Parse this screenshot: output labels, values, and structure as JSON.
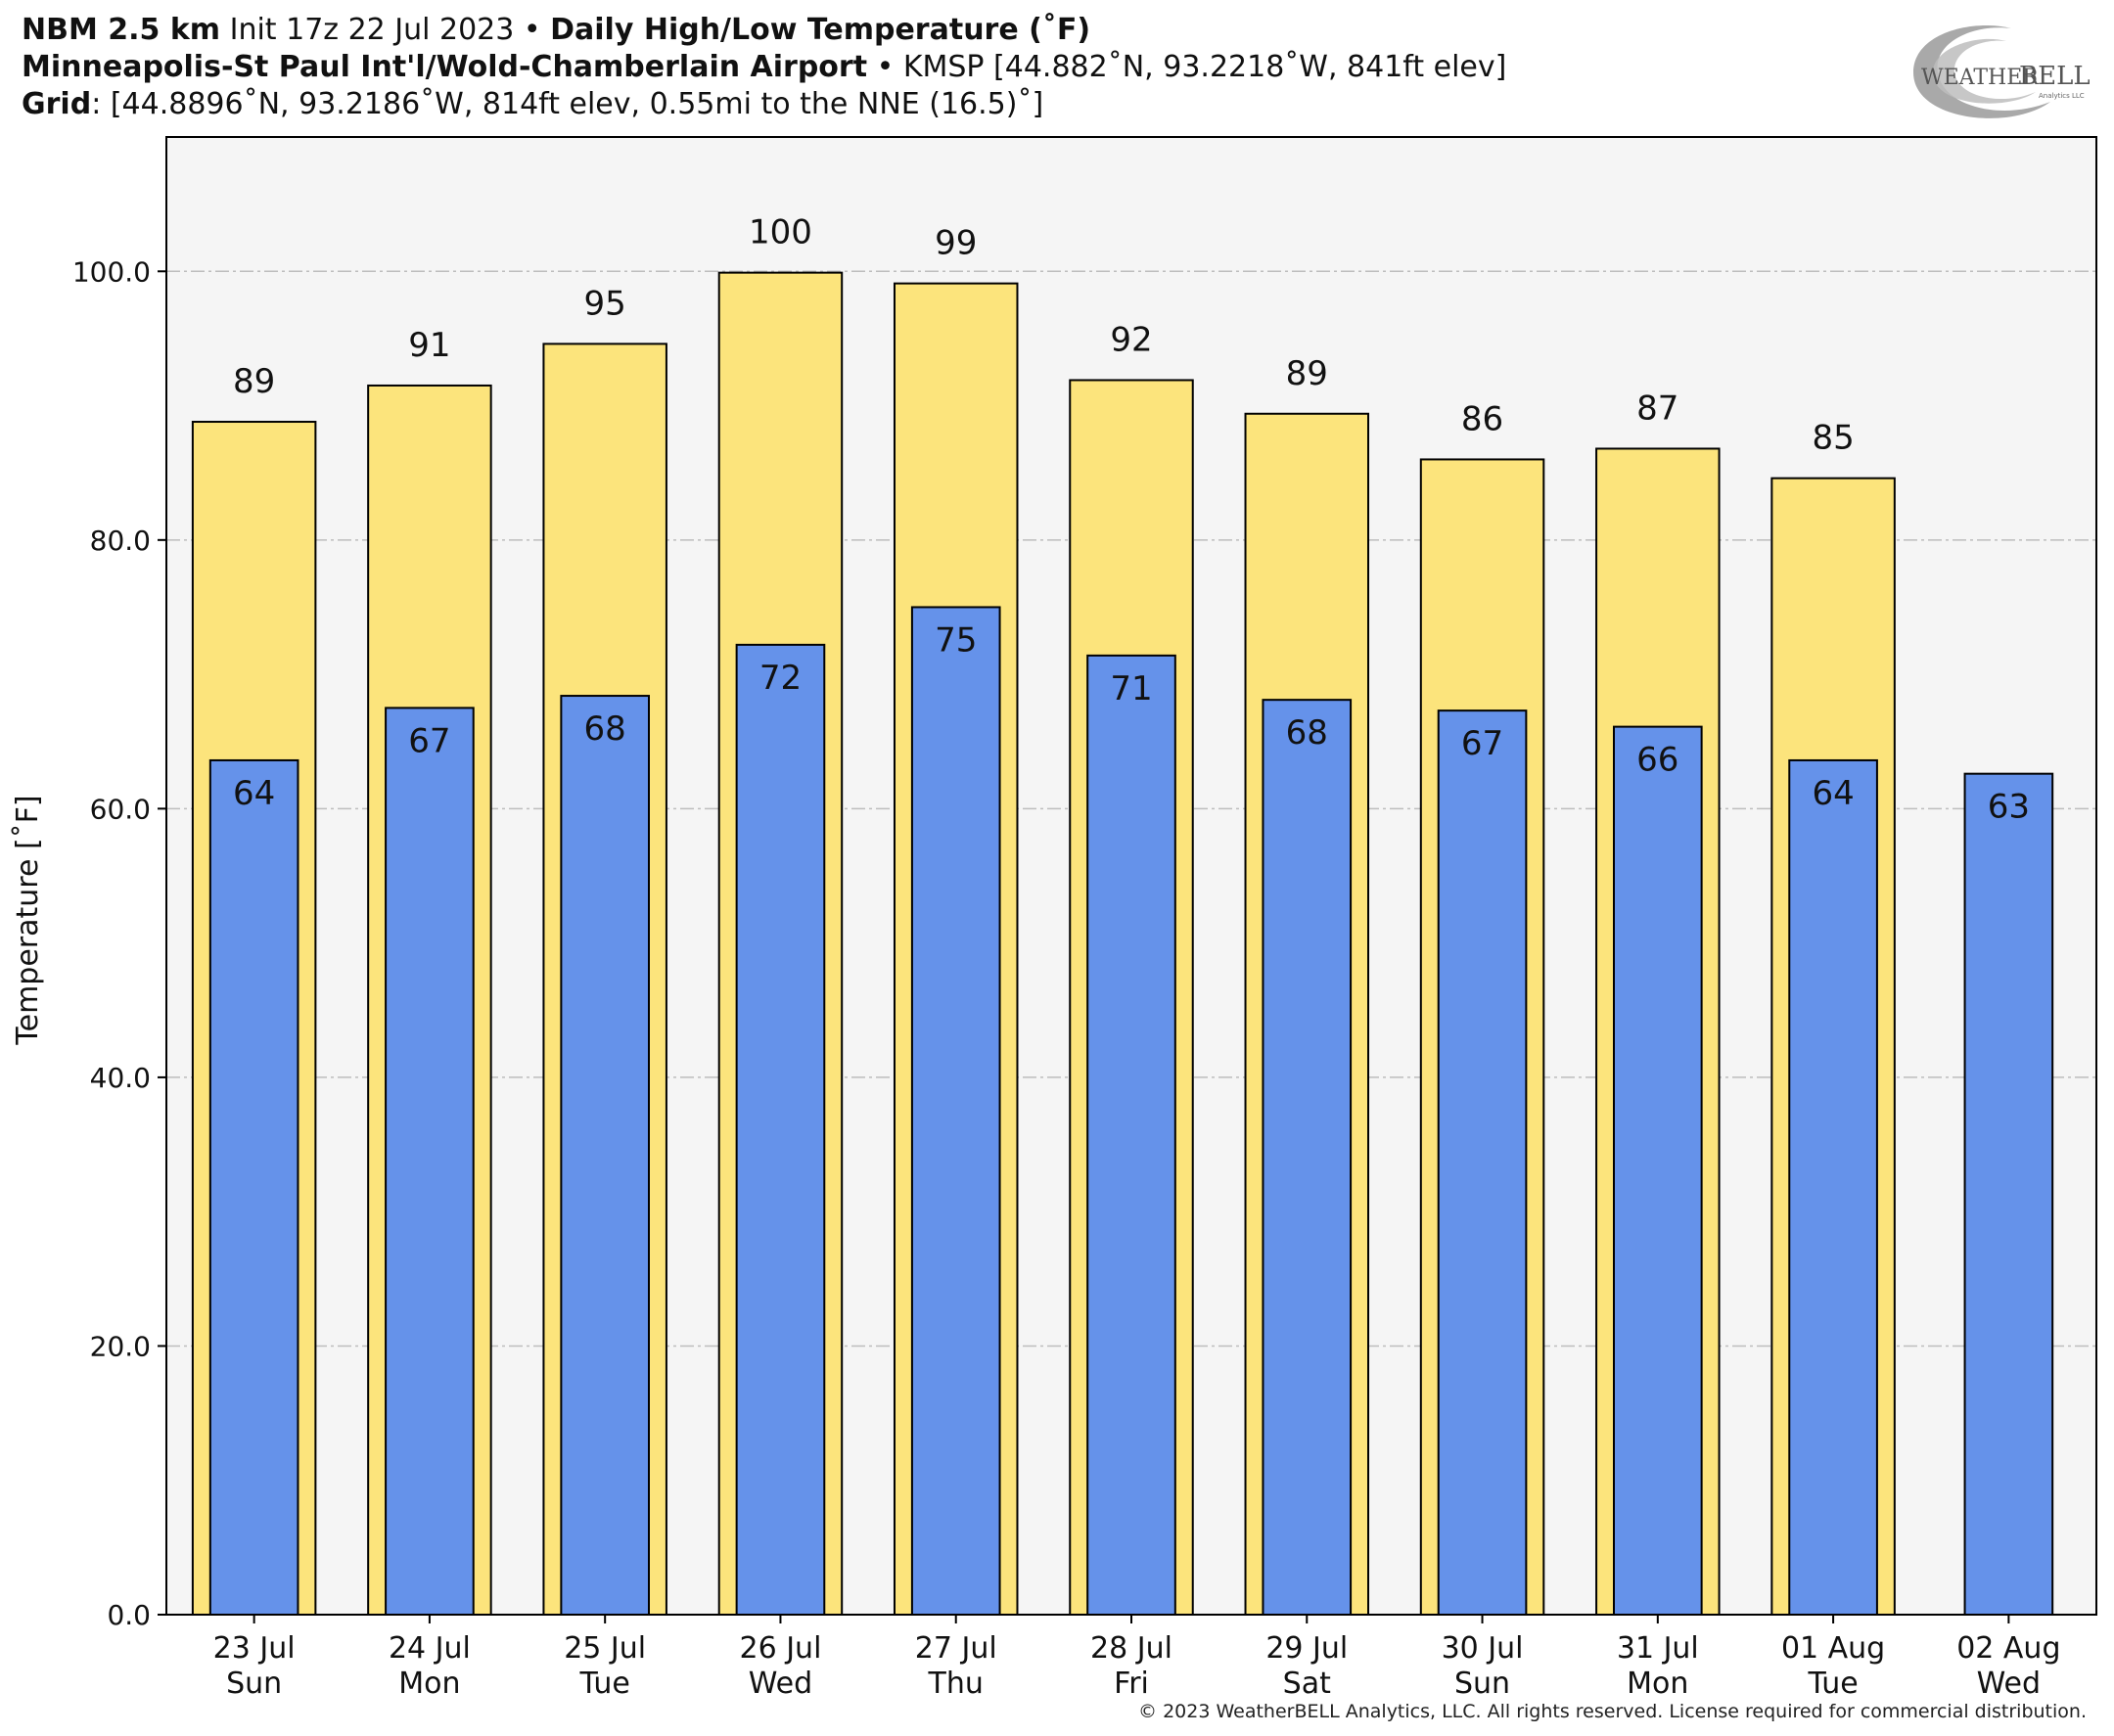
{
  "header": {
    "line1_bold_a": "NBM 2.5 km",
    "line1_text": " Init 17z 22 Jul 2023 • ",
    "line1_bold_b": "Daily High/Low Temperature (˚F)",
    "line2_bold": "Minneapolis-St Paul Int'l/Wold-Chamberlain Airport",
    "line2_text": " • KMSP [44.882˚N, 93.2218˚W, 841ft elev]",
    "line3_bold": "Grid",
    "line3_text": ": [44.8896˚N, 93.2186˚W, 814ft elev, 0.55mi to the NNE (16.5)˚]"
  },
  "logo": {
    "text_a": "Weather",
    "text_b": "BELL",
    "text_small": "Analytics LLC"
  },
  "copyright": "© 2023 WeatherBELL Analytics, LLC. All rights reserved. License required for commercial distribution.",
  "chart_data": {
    "type": "bar",
    "ylabel": "Temperature [˚F]",
    "ylim": [
      0,
      110
    ],
    "yticks": [
      0,
      20,
      40,
      60,
      80,
      100
    ],
    "ytick_labels": [
      "0.0",
      "20.0",
      "40.0",
      "60.0",
      "80.0",
      "100.0"
    ],
    "grid": true,
    "categories": [
      [
        "23 Jul",
        "Sun"
      ],
      [
        "24 Jul",
        "Mon"
      ],
      [
        "25 Jul",
        "Tue"
      ],
      [
        "26 Jul",
        "Wed"
      ],
      [
        "27 Jul",
        "Thu"
      ],
      [
        "28 Jul",
        "Fri"
      ],
      [
        "29 Jul",
        "Sat"
      ],
      [
        "30 Jul",
        "Sun"
      ],
      [
        "31 Jul",
        "Mon"
      ],
      [
        "01 Aug",
        "Tue"
      ],
      [
        "02 Aug",
        "Wed"
      ]
    ],
    "series": [
      {
        "key": "high",
        "color": "#fce47c",
        "values": [
          88.8,
          91.5,
          94.6,
          99.9,
          99.1,
          91.9,
          89.4,
          86.0,
          86.8,
          84.6,
          null
        ],
        "labels": [
          "89",
          "91",
          "95",
          "100",
          "99",
          "92",
          "89",
          "86",
          "87",
          "85",
          null
        ]
      },
      {
        "key": "low",
        "color": "#6592ea",
        "values": [
          63.6,
          67.5,
          68.4,
          72.2,
          75.0,
          71.4,
          68.1,
          67.3,
          66.1,
          63.6,
          62.6
        ],
        "labels": [
          "64",
          "67",
          "68",
          "72",
          "75",
          "71",
          "68",
          "67",
          "66",
          "64",
          "63"
        ]
      }
    ],
    "colors": {
      "plot_bg": "#f5f5f5",
      "grid": "#bdbdbd",
      "axis": "#000000"
    }
  }
}
